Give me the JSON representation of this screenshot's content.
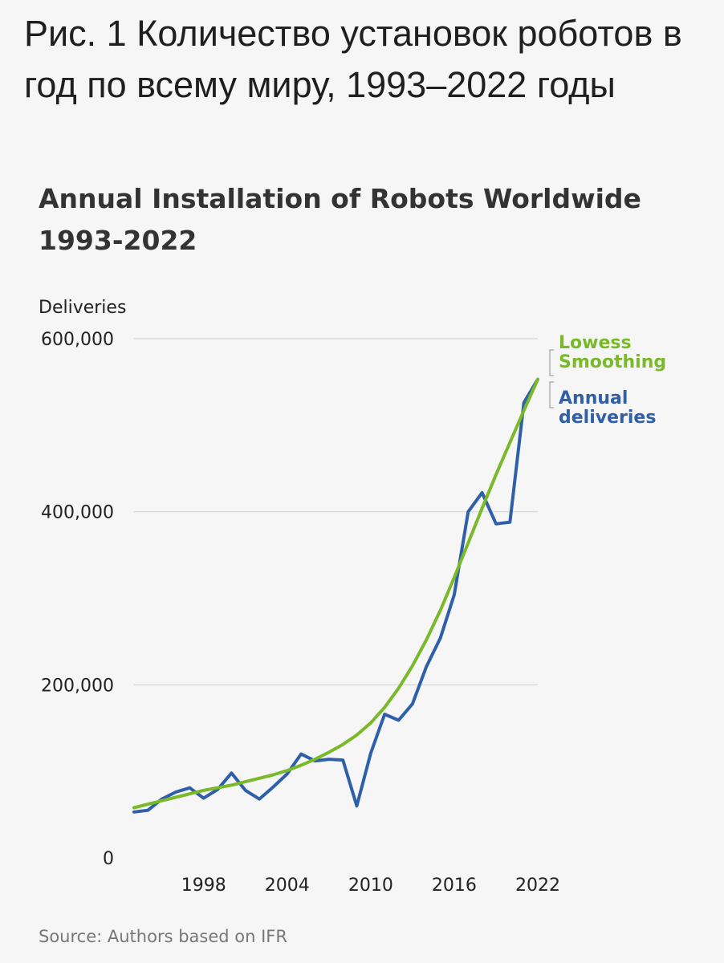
{
  "caption": "Рис. 1 Количество установок роботов в год по всему миру, 1993–2022 годы",
  "chart_data": {
    "type": "line",
    "title": "Annual Installation of Robots Worldwide 1993-2022",
    "ylabel": "Deliveries",
    "xlabel": "",
    "xlim": [
      1993,
      2022
    ],
    "ylim": [
      0,
      600000
    ],
    "y_ticks": [
      0,
      200000,
      400000,
      600000
    ],
    "y_tick_labels": [
      "0",
      "200,000",
      "400,000",
      "600,000"
    ],
    "x_ticks": [
      1998,
      2004,
      2010,
      2016,
      2022
    ],
    "x_tick_labels": [
      "1998",
      "2004",
      "2010",
      "2016",
      "2022"
    ],
    "grid": true,
    "legend_placement": "right, direct labels at line ends",
    "x": [
      1993,
      1994,
      1995,
      1996,
      1997,
      1998,
      1999,
      2000,
      2001,
      2002,
      2003,
      2004,
      2005,
      2006,
      2007,
      2008,
      2009,
      2010,
      2011,
      2012,
      2013,
      2014,
      2015,
      2016,
      2017,
      2018,
      2019,
      2020,
      2021,
      2022
    ],
    "series": [
      {
        "name": "Lowess Smoothing",
        "color": "#7ab929",
        "values": [
          58000,
          62000,
          66000,
          70000,
          74000,
          78000,
          81000,
          84000,
          88000,
          92000,
          96000,
          101000,
          107000,
          114000,
          122000,
          131000,
          142000,
          156000,
          174000,
          196000,
          222000,
          252000,
          286000,
          324000,
          364000,
          404000,
          443000,
          480000,
          517000,
          553000
        ]
      },
      {
        "name": "Annual deliveries",
        "color": "#2f5fa8",
        "values": [
          53000,
          55000,
          68000,
          76000,
          81000,
          69000,
          79000,
          98000,
          78000,
          68000,
          82000,
          97000,
          120000,
          112000,
          114000,
          113000,
          60000,
          121000,
          166000,
          159000,
          178000,
          221000,
          254000,
          304000,
          400000,
          422000,
          386000,
          388000,
          526000,
          553000
        ]
      }
    ],
    "legend": [
      {
        "label_line1": "Lowess",
        "label_line2": "Smoothing"
      },
      {
        "label_line1": "Annual",
        "label_line2": "deliveries"
      }
    ]
  },
  "source": "Source: Authors based on IFR"
}
